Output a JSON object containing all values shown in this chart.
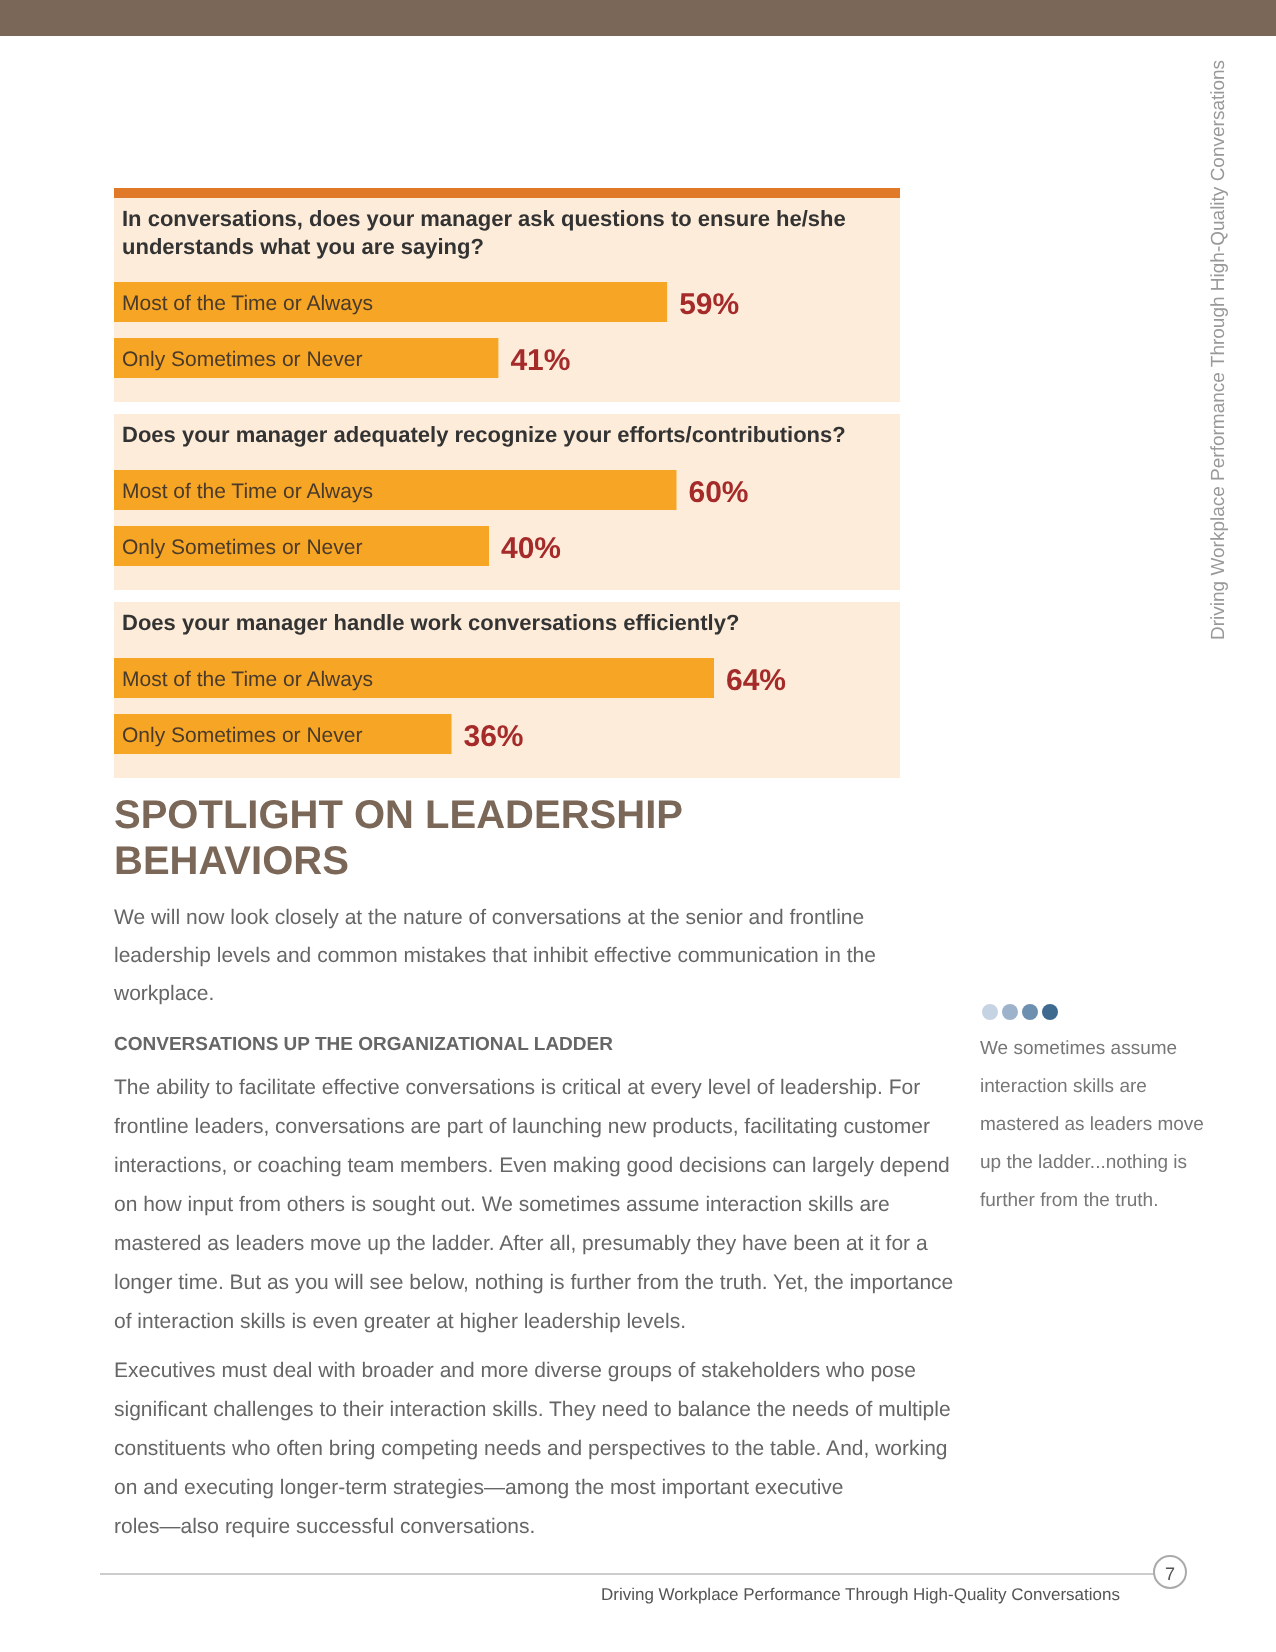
{
  "chart_data": [
    {
      "type": "bar",
      "orientation": "horizontal",
      "title": "In conversations, does your manager ask questions to ensure he/she understands what you are saying?",
      "categories": [
        "Most of the Time or Always",
        "Only Sometimes or Never"
      ],
      "values": [
        59,
        41
      ],
      "color": "#f6a524",
      "value_labels": [
        "59%",
        "41%"
      ]
    },
    {
      "type": "bar",
      "orientation": "horizontal",
      "title": "Does your manager adequately recognize your efforts/contributions?",
      "categories": [
        "Most of the Time or Always",
        "Only Sometimes or Never"
      ],
      "values": [
        60,
        40
      ],
      "color": "#f6a524",
      "value_labels": [
        "60%",
        "40%"
      ]
    },
    {
      "type": "bar",
      "orientation": "horizontal",
      "title": "Does your manager handle work conversations efficiently?",
      "categories": [
        "Most of the Time or Always",
        "Only Sometimes or Never"
      ],
      "values": [
        64,
        36
      ],
      "color": "#f6a524",
      "value_labels": [
        "64%",
        "36%"
      ]
    },
    {
      "type": "other",
      "title": "SPOTLIGHT ON LEADERSHIP BEHAVIORS",
      "annotations": [
        "We will now look closely at the nature of conversations at the senior and frontline leadership levels and common mistakes that inhibit effective communication in the workplace.",
        "CONVERSATIONS UP THE ORGANIZATIONAL LADDER",
        "The ability to facilitate effective conversations is critical at every level of leadership. For frontline leaders, conversations are part of launching new products, facilitating customer interactions, or coaching team members. Even making good decisions can largely depend on how input from others is sought out. We sometimes assume interaction skills are mastered as leaders move up the ladder. After all, presumably they have been at it for a longer time. But as you will see below, nothing is further from the truth. Yet, the importance of interaction skills is even greater at higher leadership levels.",
        "Executives must deal with broader and more diverse groups of stakeholders who pose significant challenges to their interaction skills. They need to balance the needs of multiple constituents who often bring competing needs and perspectives to the table. And, working on and executing longer-term strategies—among the most important executive roles—also require successful conversations.",
        "We sometimes assume interaction skills are mastered as leaders move up the ladder...nothing is further from the truth.",
        "Driving Workplace Performance Through High-Quality Conversations",
        "Driving Workplace Performance Through High-Quality Conversations",
        "7"
      ]
    }
  ]
}
